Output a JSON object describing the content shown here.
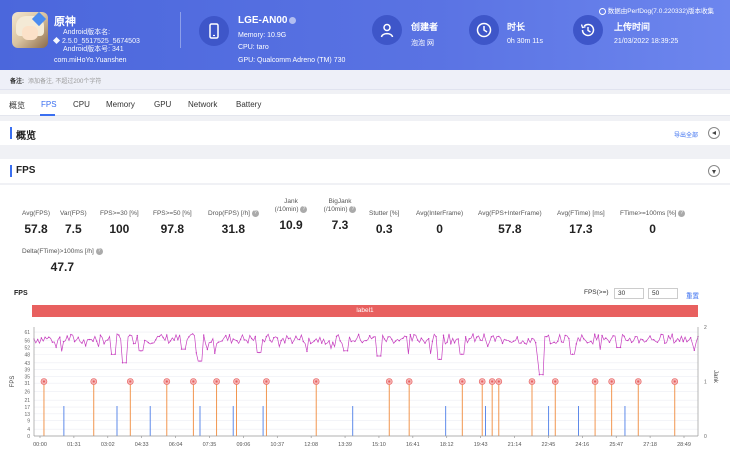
{
  "app": {
    "name": "原神",
    "version_label": "Android版本名:",
    "version_value": "2.5.0_5517525_5674503",
    "version_code": "Android版本号: 341",
    "package": "com.miHoYo.Yuanshen"
  },
  "device": {
    "name": "LGE-AN00",
    "memory": "Memory: 10.9G",
    "cpu": "CPU: taro",
    "gpu": "GPU: Qualcomm Adreno (TM) 730"
  },
  "creator": {
    "label": "创建者",
    "value": "泡泡 网"
  },
  "duration": {
    "label": "时长",
    "value": "0h 30m 11s"
  },
  "upload": {
    "label": "上传时间",
    "value": "21/03/2022 18:39:25"
  },
  "notice": "数据由PerfDog(7.0.220332)版本收集",
  "note": {
    "label": "备注:",
    "placeholder": "添加备注, 不超过200个字符"
  },
  "tabs": [
    "概览",
    "FPS",
    "CPU",
    "Memory",
    "GPU",
    "Network",
    "Battery"
  ],
  "overview": {
    "title": "概览",
    "export": "导出全部"
  },
  "fps_section": {
    "title": "FPS"
  },
  "stats": [
    {
      "label": "Avg(FPS)",
      "value": "57.8"
    },
    {
      "label": "Var(FPS)",
      "value": "7.5"
    },
    {
      "label": "FPS>=30 [%]",
      "value": "100"
    },
    {
      "label": "FPS>=50 [%]",
      "value": "97.8"
    },
    {
      "label": "Drop(FPS) [/h]",
      "value": "31.8"
    },
    {
      "label": "Jank (/10min)",
      "value": "10.9"
    },
    {
      "label": "BigJank (/10min)",
      "value": "7.3"
    },
    {
      "label": "Stutter [%]",
      "value": "0.3"
    },
    {
      "label": "Avg(InterFrame)",
      "value": "0"
    },
    {
      "label": "Avg(FPS+InterFrame)",
      "value": "57.8"
    },
    {
      "label": "Avg(FTime) [ms]",
      "value": "17.3"
    },
    {
      "label": "FTime>=100ms [%]",
      "value": "0"
    },
    {
      "label": "Delta(FTime)>100ms [/h]",
      "value": "47.7"
    }
  ],
  "fps_chart": {
    "title": "FPS",
    "threshold_label": "FPS(>=)",
    "threshold_1": "30",
    "threshold_2": "50",
    "reset": "重置",
    "label_bar": "label1"
  },
  "chart_data": {
    "type": "line",
    "ylabel": "FPS",
    "y2label": "Jank",
    "ylim": [
      0,
      64
    ],
    "y2lim": [
      0,
      2
    ],
    "y_ticks": [
      0,
      4,
      9,
      13,
      17,
      21,
      26,
      31,
      35,
      39,
      43,
      48,
      52,
      56,
      61
    ],
    "y2_ticks": [
      0,
      1,
      2
    ],
    "x_ticks": [
      "00:00",
      "01:31",
      "03:02",
      "04:33",
      "06:04",
      "07:35",
      "09:06",
      "10:37",
      "12:08",
      "13:39",
      "15:10",
      "16:41",
      "18:12",
      "19:43",
      "21:14",
      "22:45",
      "24:16",
      "25:47",
      "27:18",
      "28:49"
    ],
    "series": [
      {
        "name": "FPS",
        "color": "#c63fbf",
        "base": 57,
        "dips": [
          [
            0.12,
            48
          ],
          [
            0.135,
            43
          ],
          [
            0.16,
            50
          ],
          [
            0.225,
            51
          ],
          [
            0.25,
            44
          ],
          [
            0.34,
            49
          ],
          [
            0.47,
            50
          ],
          [
            0.52,
            47
          ],
          [
            0.61,
            45
          ],
          [
            0.645,
            48
          ],
          [
            0.76,
            46
          ],
          [
            0.765,
            36
          ],
          [
            0.81,
            48
          ],
          [
            0.88,
            52
          ]
        ]
      },
      {
        "name": "Jank",
        "color": "#f08a3c",
        "positions": [
          0.015,
          0.09,
          0.145,
          0.2,
          0.24,
          0.275,
          0.305,
          0.35,
          0.425,
          0.535,
          0.565,
          0.645,
          0.675,
          0.69,
          0.7,
          0.75,
          0.785,
          0.845,
          0.87,
          0.91,
          0.965
        ]
      },
      {
        "name": "BigJank",
        "color": "#4d7ee8",
        "positions": [
          0.045,
          0.125,
          0.175,
          0.25,
          0.3,
          0.345,
          0.48,
          0.62,
          0.68,
          0.775,
          0.82,
          0.89
        ]
      }
    ]
  }
}
